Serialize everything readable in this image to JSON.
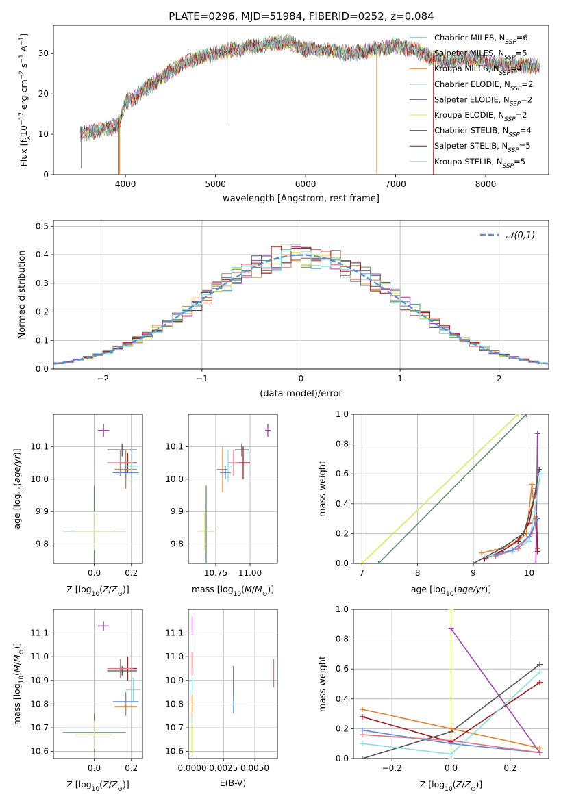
{
  "figure": {
    "title": "PLATE=0296, MJD=51984, FIBERID=0252, z=0.084"
  },
  "colors": {
    "chabrier_miles": "#3e9c8a",
    "salpeter_miles": "#e7707e",
    "kroupa_miles": "#e67e22",
    "chabrier_elodie": "#5f8a6b",
    "salpeter_elodie": "#9c3fb0",
    "kroupa_elodie": "#d8e85c",
    "chabrier_stelib": "#555555",
    "salpeter_stelib": "#a3181c",
    "kroupa_stelib": "#8adede",
    "extra_blue": "#5b8bd9",
    "normal_curve": "#5a8fd4",
    "grid": "#b0b0b0"
  },
  "chart_data": [
    {
      "id": "spectrum",
      "type": "line",
      "xlabel": "wavelength [Angstrom, rest frame]",
      "ylabel": "Flux [f_λ10^-17 erg cm^-2 s^-1 A^-1]",
      "xlim": [
        3200,
        8700
      ],
      "ylim": [
        0,
        37
      ],
      "xticks": [
        4000,
        5000,
        6000,
        7000,
        8000
      ],
      "yticks": [
        0,
        10,
        20,
        30
      ],
      "grid": false,
      "legend_position": "top-right",
      "legend": [
        {
          "label": "Chabrier MILES, N",
          "sub": "SSP",
          "eq": "=6",
          "color_key": "chabrier_miles"
        },
        {
          "label": "Salpeter MILES, N",
          "sub": "SSP",
          "eq": "=5",
          "color_key": "salpeter_miles"
        },
        {
          "label": "Kroupa MILES, N",
          "sub": "SSP",
          "eq": "=4",
          "color_key": "kroupa_miles"
        },
        {
          "label": "Chabrier ELODIE, N",
          "sub": "SSP",
          "eq": "=2",
          "color_key": "chabrier_elodie"
        },
        {
          "label": "Salpeter ELODIE, N",
          "sub": "SSP",
          "eq": "=2",
          "color_key": "salpeter_elodie"
        },
        {
          "label": "Kroupa ELODIE, N",
          "sub": "SSP",
          "eq": "=2",
          "color_key": "kroupa_elodie"
        },
        {
          "label": "Chabrier STELIB, N",
          "sub": "SSP",
          "eq": "=4",
          "color_key": "chabrier_stelib"
        },
        {
          "label": "Salpeter STELIB, N",
          "sub": "SSP",
          "eq": "=5",
          "color_key": "salpeter_stelib"
        },
        {
          "label": "Kroupa STELIB, N",
          "sub": "SSP",
          "eq": "=5",
          "color_key": "kroupa_stelib"
        }
      ],
      "continuum": [
        [
          3500,
          10
        ],
        [
          3700,
          11
        ],
        [
          3900,
          12
        ],
        [
          3950,
          14
        ],
        [
          4000,
          18
        ],
        [
          4100,
          19
        ],
        [
          4200,
          21
        ],
        [
          4400,
          24
        ],
        [
          4600,
          27
        ],
        [
          4800,
          29
        ],
        [
          5000,
          30
        ],
        [
          5200,
          31
        ],
        [
          5500,
          32
        ],
        [
          5800,
          33
        ],
        [
          6000,
          31
        ],
        [
          6200,
          31
        ],
        [
          6500,
          30
        ],
        [
          6800,
          31
        ],
        [
          7000,
          32
        ],
        [
          7200,
          31
        ],
        [
          7400,
          29
        ],
        [
          7600,
          28
        ],
        [
          7800,
          29
        ],
        [
          8000,
          28
        ],
        [
          8300,
          27
        ],
        [
          8600,
          27
        ]
      ],
      "spikes": [
        [
          5130,
          13,
          36.5
        ],
        [
          3510,
          1.5,
          12
        ],
        [
          3920,
          0,
          14
        ]
      ],
      "vertical_drops": [
        [
          3935,
          0,
          14
        ],
        [
          6790,
          0,
          31
        ],
        [
          7420,
          0,
          30
        ]
      ]
    },
    {
      "id": "residuals",
      "type": "step",
      "xlabel": "(data-model)/error",
      "ylabel": "Normed distribution",
      "xlim": [
        -2.5,
        2.5
      ],
      "ylim": [
        0,
        0.52
      ],
      "xticks": [
        -2,
        -1,
        0,
        1,
        2
      ],
      "xtick_labels": [
        "−2",
        "−1",
        "0",
        "1",
        "2"
      ],
      "yticks": [
        0.0,
        0.1,
        0.2,
        0.3,
        0.4,
        0.5
      ],
      "ytick_labels": [
        "0.0",
        "0.1",
        "0.2",
        "0.3",
        "0.4",
        "0.5"
      ],
      "grid": true,
      "legend_position": "top-right",
      "legend_label": "𝒩(0,1)",
      "bin_width": 0.1
    },
    {
      "id": "age_vs_Z",
      "type": "errorbar",
      "xlabel": "Z [log10(Z/Z⊙)]",
      "ylabel": "age [log10(age/yr)]",
      "xlim": [
        -0.22,
        0.26
      ],
      "ylim": [
        9.74,
        10.2
      ],
      "xticks": [
        0.0,
        0.2
      ],
      "xtick_labels": [
        "0.0",
        "0.2"
      ],
      "yticks": [
        9.8,
        9.9,
        10.0,
        10.1
      ],
      "ytick_labels": [
        "9.8",
        "9.9",
        "10.0",
        "10.1"
      ],
      "grid": true,
      "points": [
        {
          "c": "salpeter_elodie",
          "x": 0.05,
          "xe": 0.03,
          "y": 10.15,
          "ye": 0.02
        },
        {
          "c": "chabrier_stelib",
          "x": 0.15,
          "xe": 0.08,
          "y": 10.09,
          "ye": 0.02
        },
        {
          "c": "salpeter_stelib",
          "x": 0.18,
          "xe": 0.05,
          "y": 10.05,
          "ye": 0.03
        },
        {
          "c": "salpeter_miles",
          "x": 0.14,
          "xe": 0.07,
          "y": 10.05,
          "ye": 0.04
        },
        {
          "c": "kroupa_miles",
          "x": 0.17,
          "xe": 0.06,
          "y": 10.03,
          "ye": 0.06
        },
        {
          "c": "kroupa_stelib",
          "x": 0.2,
          "xe": 0.04,
          "y": 10.04,
          "ye": 0.06
        },
        {
          "c": "extra_blue",
          "x": 0.17,
          "xe": 0.07,
          "y": 10.02,
          "ye": 0.02
        },
        {
          "c": "chabrier_elodie",
          "x": 0.0,
          "xe": 0.17,
          "y": 9.84,
          "ye": 0.14
        },
        {
          "c": "kroupa_elodie",
          "x": 0.0,
          "xe": 0.1,
          "y": 9.84,
          "ye": 0.06
        }
      ]
    },
    {
      "id": "age_vs_mass",
      "type": "errorbar",
      "xlabel": "mass [log10(M/M⊙)]",
      "ylabel": "",
      "xlim": [
        10.55,
        11.2
      ],
      "ylim": [
        9.74,
        10.2
      ],
      "xticks": [
        10.75,
        11.0
      ],
      "xtick_labels": [
        "10.75",
        "11.00"
      ],
      "yticks": [
        9.8,
        9.9,
        10.0,
        10.1
      ],
      "ytick_labels": [
        "9.8",
        "9.9",
        "10.0",
        "10.1"
      ],
      "grid": true,
      "points": [
        {
          "c": "salpeter_elodie",
          "x": 11.13,
          "xe": 0.02,
          "y": 10.15,
          "ye": 0.02
        },
        {
          "c": "chabrier_stelib",
          "x": 10.94,
          "xe": 0.05,
          "y": 10.09,
          "ye": 0.02
        },
        {
          "c": "salpeter_stelib",
          "x": 10.95,
          "xe": 0.05,
          "y": 10.05,
          "ye": 0.05
        },
        {
          "c": "salpeter_miles",
          "x": 10.88,
          "xe": 0.04,
          "y": 10.05,
          "ye": 0.04
        },
        {
          "c": "kroupa_miles",
          "x": 10.8,
          "xe": 0.04,
          "y": 10.03,
          "ye": 0.07
        },
        {
          "c": "kroupa_stelib",
          "x": 10.84,
          "xe": 0.03,
          "y": 10.04,
          "ye": 0.05
        },
        {
          "c": "extra_blue",
          "x": 10.82,
          "xe": 0.04,
          "y": 10.02,
          "ye": 0.02
        },
        {
          "c": "chabrier_elodie",
          "x": 10.68,
          "xe": 0.06,
          "y": 9.84,
          "ye": 0.14
        },
        {
          "c": "kroupa_elodie",
          "x": 10.67,
          "xe": 0.05,
          "y": 9.84,
          "ye": 0.06
        }
      ]
    },
    {
      "id": "mass_weight_age",
      "type": "line",
      "xlabel": "age [log10(age/yr)]",
      "ylabel": "mass weight",
      "xlim": [
        6.85,
        10.35
      ],
      "ylim": [
        0,
        1
      ],
      "xticks": [
        7,
        8,
        9,
        10
      ],
      "xtick_labels": [
        "7",
        "8",
        "9",
        "10"
      ],
      "yticks": [
        0.0,
        0.2,
        0.4,
        0.6,
        0.8,
        1.0
      ],
      "ytick_labels": [
        "0.0",
        "0.2",
        "0.4",
        "0.6",
        "0.8",
        "1.0"
      ],
      "grid": true,
      "series": [
        {
          "c": "kroupa_elodie",
          "points": [
            [
              7.0,
              0.0
            ],
            [
              9.8,
              1.0
            ]
          ]
        },
        {
          "c": "chabrier_elodie",
          "points": [
            [
              7.3,
              0.0
            ],
            [
              9.95,
              1.0
            ]
          ]
        },
        {
          "c": "kroupa_miles",
          "points": [
            [
              9.15,
              0.07
            ],
            [
              9.5,
              0.1
            ],
            [
              9.8,
              0.15
            ],
            [
              9.95,
              0.2
            ],
            [
              10.05,
              0.53
            ],
            [
              10.15,
              0.1
            ]
          ]
        },
        {
          "c": "salpeter_stelib",
          "points": [
            [
              9.2,
              0.03
            ],
            [
              9.5,
              0.08
            ],
            [
              9.8,
              0.15
            ],
            [
              10.0,
              0.27
            ],
            [
              10.12,
              0.5
            ],
            [
              10.15,
              0.08
            ]
          ]
        },
        {
          "c": "salpeter_elodie",
          "points": [
            [
              10.12,
              0.0
            ],
            [
              10.15,
              0.87
            ]
          ]
        },
        {
          "c": "chabrier_stelib",
          "points": [
            [
              9.0,
              0.0
            ],
            [
              9.5,
              0.1
            ],
            [
              9.9,
              0.2
            ],
            [
              10.1,
              0.45
            ],
            [
              10.18,
              0.63
            ]
          ]
        },
        {
          "c": "kroupa_stelib",
          "points": [
            [
              9.3,
              0.05
            ],
            [
              9.7,
              0.08
            ],
            [
              10.0,
              0.15
            ],
            [
              10.1,
              0.35
            ],
            [
              10.2,
              0.6
            ]
          ]
        },
        {
          "c": "salpeter_miles",
          "points": [
            [
              9.4,
              0.05
            ],
            [
              9.8,
              0.1
            ],
            [
              10.05,
              0.2
            ],
            [
              10.12,
              0.3
            ]
          ]
        },
        {
          "c": "extra_blue",
          "points": [
            [
              9.4,
              0.06
            ],
            [
              9.7,
              0.09
            ],
            [
              10.0,
              0.18
            ],
            [
              10.15,
              0.3
            ]
          ]
        }
      ]
    },
    {
      "id": "mass_vs_Z",
      "type": "errorbar",
      "xlabel": "Z [log10(Z/Z⊙)]",
      "ylabel": "mass [log10(M/M⊙)]",
      "xlim": [
        -0.22,
        0.26
      ],
      "ylim": [
        10.57,
        11.2
      ],
      "xticks": [
        0.0,
        0.2
      ],
      "xtick_labels": [
        "0.0",
        "0.2"
      ],
      "yticks": [
        10.6,
        10.7,
        10.8,
        10.9,
        11.0,
        11.1
      ],
      "ytick_labels": [
        "10.6",
        "10.7",
        "10.8",
        "10.9",
        "11.0",
        "11.1"
      ],
      "grid": true,
      "points": [
        {
          "c": "salpeter_elodie",
          "x": 0.05,
          "xe": 0.03,
          "y": 11.13,
          "ye": 0.02
        },
        {
          "c": "chabrier_stelib",
          "x": 0.15,
          "xe": 0.08,
          "y": 10.94,
          "ye": 0.02
        },
        {
          "c": "salpeter_stelib",
          "x": 0.18,
          "xe": 0.05,
          "y": 10.95,
          "ye": 0.05
        },
        {
          "c": "salpeter_miles",
          "x": 0.14,
          "xe": 0.07,
          "y": 10.95,
          "ye": 0.04
        },
        {
          "c": "kroupa_stelib",
          "x": 0.21,
          "xe": 0.04,
          "y": 10.86,
          "ye": 0.05
        },
        {
          "c": "extra_blue",
          "x": 0.17,
          "xe": 0.07,
          "y": 10.81,
          "ye": 0.04
        },
        {
          "c": "kroupa_miles",
          "x": 0.17,
          "xe": 0.06,
          "y": 10.79,
          "ye": 0.04
        },
        {
          "c": "chabrier_elodie",
          "x": 0.0,
          "xe": 0.17,
          "y": 10.68,
          "ye": 0.08
        },
        {
          "c": "kroupa_elodie",
          "x": 0.0,
          "xe": 0.1,
          "y": 10.67,
          "ye": 0.06
        }
      ]
    },
    {
      "id": "mass_vs_ebv",
      "type": "errorbar",
      "xlabel": "E(B-V)",
      "ylabel": "",
      "xlim": [
        -0.0003,
        0.0068
      ],
      "ylim": [
        10.57,
        11.2
      ],
      "xticks": [
        0.0,
        0.0025,
        0.005
      ],
      "xtick_labels": [
        "0.0000",
        "0.0025",
        "0.0050"
      ],
      "yticks": [
        10.6,
        10.7,
        10.8,
        10.9,
        11.0,
        11.1
      ],
      "ytick_labels": [
        "10.6",
        "10.7",
        "10.8",
        "10.9",
        "11.0",
        "11.1"
      ],
      "grid": true,
      "points": [
        {
          "c": "salpeter_elodie",
          "x": 0.0,
          "xe": 0.0,
          "y": 11.13,
          "ye": 0.04
        },
        {
          "c": "salpeter_stelib",
          "x": 0.0,
          "xe": 0.0,
          "y": 10.97,
          "ye": 0.05
        },
        {
          "c": "kroupa_stelib",
          "x": 0.0,
          "xe": 0.0,
          "y": 10.86,
          "ye": 0.06
        },
        {
          "c": "kroupa_miles",
          "x": 0.0,
          "xe": 0.0,
          "y": 10.79,
          "ye": 0.05
        },
        {
          "c": "chabrier_elodie",
          "x": 0.0,
          "xe": 0.0,
          "y": 10.68,
          "ye": 0.08
        },
        {
          "c": "kroupa_elodie",
          "x": 0.0,
          "xe": 0.0,
          "y": 10.65,
          "ye": 0.06
        },
        {
          "c": "chabrier_stelib",
          "x": 0.0033,
          "xe": 0.0,
          "y": 10.89,
          "ye": 0.07
        },
        {
          "c": "extra_blue",
          "x": 0.0033,
          "xe": 0.0,
          "y": 10.8,
          "ye": 0.04
        },
        {
          "c": "salpeter_miles",
          "x": 0.0065,
          "xe": 0.0,
          "y": 10.93,
          "ye": 0.06
        }
      ]
    },
    {
      "id": "mass_weight_Z",
      "type": "line",
      "xlabel": "Z [log10(Z/Z⊙)]",
      "ylabel": "mass weight",
      "xlim": [
        -0.33,
        0.33
      ],
      "ylim": [
        0,
        1
      ],
      "xticks": [
        -0.2,
        0.0,
        0.2
      ],
      "xtick_labels": [
        "−0.2",
        "0.0",
        "0.2"
      ],
      "yticks": [
        0.0,
        0.2,
        0.4,
        0.6,
        0.8,
        1.0
      ],
      "ytick_labels": [
        "0.0",
        "0.2",
        "0.4",
        "0.6",
        "0.8",
        "1.0"
      ],
      "grid": true,
      "series": [
        {
          "c": "kroupa_elodie",
          "points": [
            [
              0.0,
              0.0
            ],
            [
              0.0,
              1.0
            ]
          ]
        },
        {
          "c": "salpeter_elodie",
          "points": [
            [
              0.0,
              0.87
            ],
            [
              0.3,
              0.04
            ]
          ]
        },
        {
          "c": "chabrier_stelib",
          "points": [
            [
              -0.3,
              0.0
            ],
            [
              0.0,
              0.18
            ],
            [
              0.3,
              0.63
            ]
          ]
        },
        {
          "c": "kroupa_miles",
          "points": [
            [
              -0.3,
              0.33
            ],
            [
              0.0,
              0.2
            ],
            [
              0.3,
              0.07
            ]
          ]
        },
        {
          "c": "salpeter_stelib",
          "points": [
            [
              -0.3,
              0.28
            ],
            [
              0.0,
              0.11
            ],
            [
              0.3,
              0.51
            ]
          ]
        },
        {
          "c": "extra_blue",
          "points": [
            [
              -0.3,
              0.19
            ],
            [
              0.0,
              0.1
            ],
            [
              0.3,
              0.04
            ]
          ]
        },
        {
          "c": "salpeter_miles",
          "points": [
            [
              -0.3,
              0.16
            ],
            [
              0.0,
              0.12
            ],
            [
              0.3,
              0.04
            ]
          ]
        },
        {
          "c": "kroupa_stelib",
          "points": [
            [
              -0.3,
              0.1
            ],
            [
              0.0,
              0.03
            ],
            [
              0.3,
              0.58
            ]
          ]
        }
      ]
    }
  ]
}
